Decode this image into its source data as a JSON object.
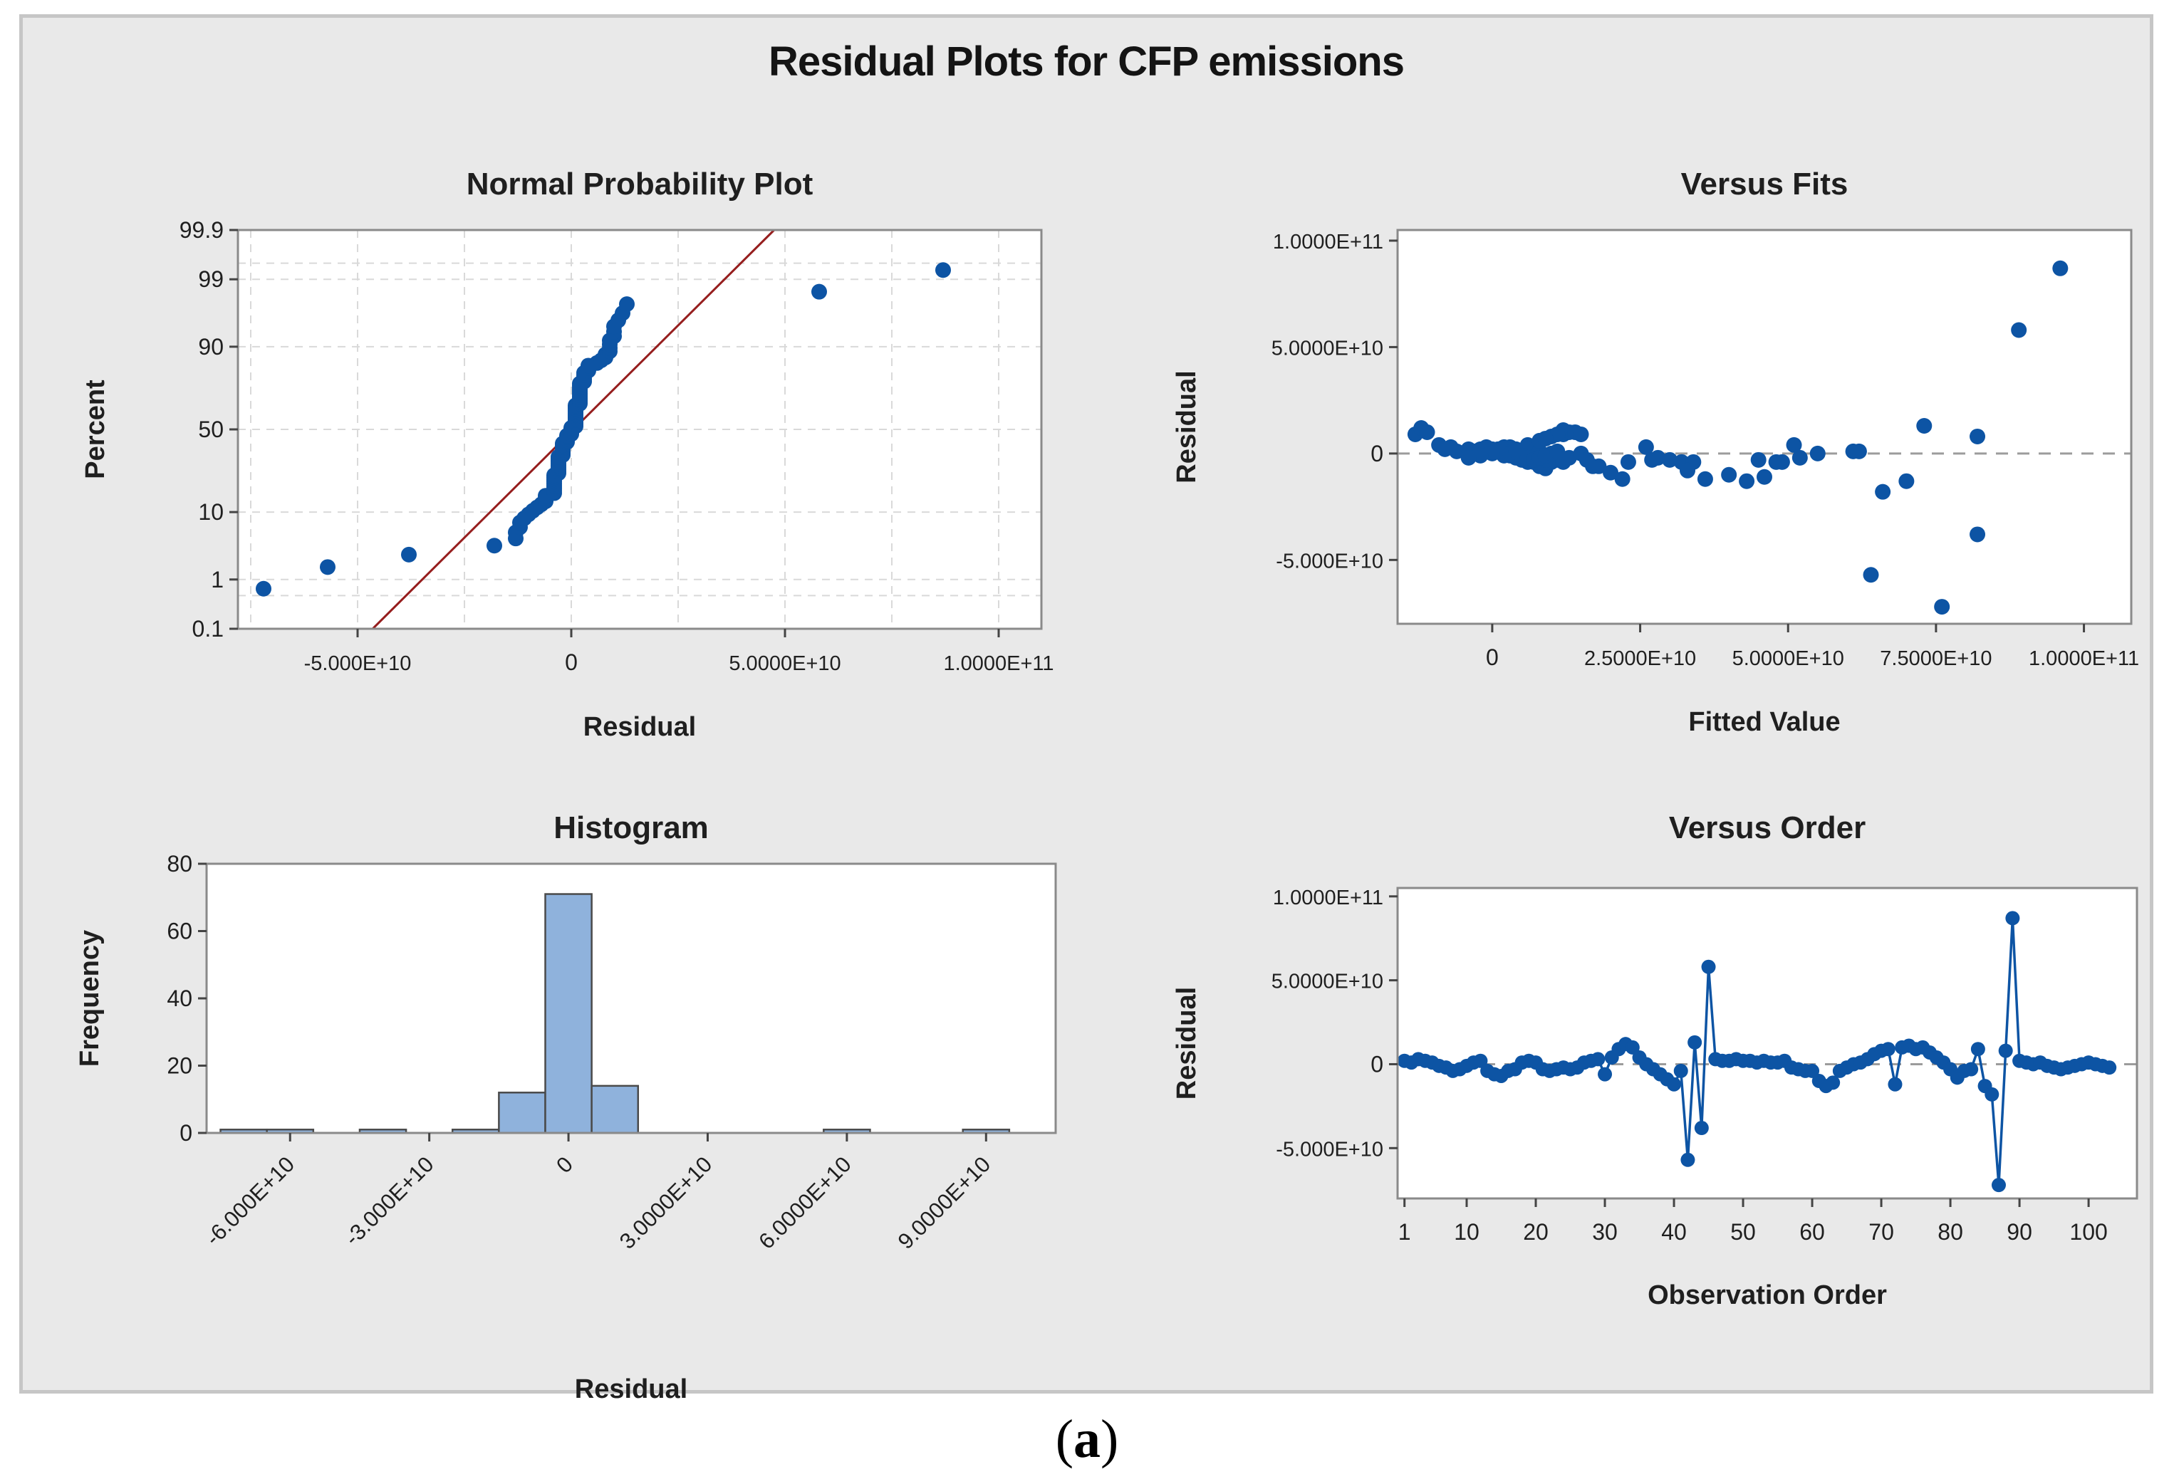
{
  "figure": {
    "title": "Residual Plots for CFP emissions",
    "caption": {
      "open": "(",
      "letter": "a",
      "close": ")"
    },
    "colors": {
      "background": "#e9e9e9",
      "figure_border": "#c6c6c6",
      "plot_background": "#ffffff",
      "plot_border": "#8a8a8a",
      "point_blue": "#0D54A4",
      "bar_fill": "#8FB2DC",
      "bar_edge": "#4a4a4a",
      "fit_line_red": "#961E1E",
      "zero_line_gray": "#9c9c9c",
      "grid_gray": "#d9d9d9",
      "tick_color": "#444444",
      "text_color": "#1f1f1f"
    }
  },
  "chart_data": [
    {
      "id": "normal_probability_plot",
      "type": "scatter",
      "title": "Normal Probability Plot",
      "xlabel": "Residual",
      "ylabel": "Percent",
      "x_scale": "linear",
      "y_scale": "probit",
      "xlim_e9": [
        -78,
        110
      ],
      "ylim_percent": [
        0.1,
        99.9
      ],
      "x_ticks": [
        {
          "v": -50,
          "label": "-5.000E+10"
        },
        {
          "v": 0,
          "label": "0"
        },
        {
          "v": 50,
          "label": "5.0000E+10"
        },
        {
          "v": 100,
          "label": "1.0000E+11"
        }
      ],
      "y_ticks": [
        {
          "v": 99.9,
          "label": "99.9"
        },
        {
          "v": 99,
          "label": "99"
        },
        {
          "v": 90,
          "label": "90"
        },
        {
          "v": 50,
          "label": "50"
        },
        {
          "v": 10,
          "label": "10"
        },
        {
          "v": 1,
          "label": "1"
        },
        {
          "v": 0.1,
          "label": "0.1"
        }
      ],
      "y_grid_percents": [
        99.5,
        99,
        90,
        50,
        10,
        1,
        0.5
      ],
      "x_grid_start_e9": -75,
      "x_grid_step_e9": 25,
      "fit_line": {
        "mean_e9": 0.5,
        "sd_e9": 15.2
      },
      "points_note": "points are the sorted versus_order residuals at percent = 100*(rank-0.3)/(n+0.4)"
    },
    {
      "id": "versus_fits",
      "type": "scatter",
      "title": "Versus Fits",
      "xlabel": "Fitted Value",
      "ylabel": "Residual",
      "xlim_e9": [
        -16,
        108
      ],
      "ylim_e9": [
        -80,
        105
      ],
      "zero_line": true,
      "x_ticks": [
        {
          "v": 0,
          "label": "0"
        },
        {
          "v": 25,
          "label": "2.5000E+10"
        },
        {
          "v": 50,
          "label": "5.0000E+10"
        },
        {
          "v": 75,
          "label": "7.5000E+10"
        },
        {
          "v": 100,
          "label": "1.0000E+11"
        }
      ],
      "y_ticks": [
        {
          "v": 100,
          "label": "1.0000E+11"
        },
        {
          "v": 50,
          "label": "5.0000E+10"
        },
        {
          "v": 0,
          "label": "0"
        },
        {
          "v": -50,
          "label": "-5.000E+10"
        }
      ],
      "fitted_e9": [
        -8,
        -6,
        -7,
        -4,
        -3,
        2,
        4,
        6,
        5,
        3,
        0,
        -2,
        7,
        8,
        9,
        10,
        6,
        1,
        -1,
        2,
        11,
        12,
        9,
        8,
        7,
        13,
        5,
        4,
        3,
        17,
        6,
        -13,
        -12,
        -11,
        -9,
        15,
        16,
        18,
        20,
        22,
        23,
        64,
        73,
        82,
        89,
        -1,
        0,
        1,
        2,
        3,
        4,
        5,
        6,
        7,
        8,
        2,
        28,
        30,
        32,
        34,
        40,
        43,
        46,
        49,
        52,
        55,
        62,
        26,
        8,
        10,
        12,
        36,
        13,
        12,
        11,
        14,
        9,
        51,
        61,
        45,
        33,
        48,
        27,
        15,
        70,
        66,
        76,
        82,
        96,
        1,
        2,
        3,
        4,
        5,
        6,
        7,
        8,
        9,
        10,
        11,
        0,
        -2,
        -4
      ]
    },
    {
      "id": "histogram",
      "type": "bar",
      "title": "Histogram",
      "xlabel": "Residual",
      "ylabel": "Frequency",
      "xlim_e9": [
        -78,
        105
      ],
      "ylim": [
        0,
        80
      ],
      "bin_width_e9": 10,
      "bin_centers_e9": [
        -70,
        -60,
        -40,
        -20,
        -10,
        0,
        10,
        60,
        90
      ],
      "frequencies": [
        1,
        1,
        1,
        1,
        12,
        71,
        14,
        1,
        1
      ],
      "x_tick_rotation": -45,
      "x_ticks": [
        {
          "v": -60,
          "label": "-6.000E+10"
        },
        {
          "v": -30,
          "label": "-3.000E+10"
        },
        {
          "v": 0,
          "label": "0"
        },
        {
          "v": 30,
          "label": "3.0000E+10"
        },
        {
          "v": 60,
          "label": "6.0000E+10"
        },
        {
          "v": 90,
          "label": "9.0000E+10"
        }
      ],
      "y_ticks": [
        {
          "v": 0,
          "label": "0"
        },
        {
          "v": 20,
          "label": "20"
        },
        {
          "v": 40,
          "label": "40"
        },
        {
          "v": 60,
          "label": "60"
        },
        {
          "v": 80,
          "label": "80"
        }
      ]
    },
    {
      "id": "versus_order",
      "type": "line",
      "title": "Versus Order",
      "xlabel": "Observation Order",
      "ylabel": "Residual",
      "xlim": [
        0,
        107
      ],
      "ylim_e9": [
        -80,
        105
      ],
      "zero_line": true,
      "x_ticks": [
        {
          "v": 1,
          "label": "1"
        },
        {
          "v": 10,
          "label": "10"
        },
        {
          "v": 20,
          "label": "20"
        },
        {
          "v": 30,
          "label": "30"
        },
        {
          "v": 40,
          "label": "40"
        },
        {
          "v": 50,
          "label": "50"
        },
        {
          "v": 60,
          "label": "60"
        },
        {
          "v": 70,
          "label": "70"
        },
        {
          "v": 80,
          "label": "80"
        },
        {
          "v": 90,
          "label": "90"
        },
        {
          "v": 100,
          "label": "100"
        }
      ],
      "y_ticks": [
        {
          "v": 100,
          "label": "1.0000E+11"
        },
        {
          "v": 50,
          "label": "5.0000E+10"
        },
        {
          "v": 0,
          "label": "0"
        },
        {
          "v": -50,
          "label": "-5.000E+10"
        }
      ],
      "residuals_e9": [
        2,
        1,
        3,
        2,
        1,
        -1,
        -2,
        -4,
        -3,
        -1,
        1,
        2,
        -4,
        -6,
        -7,
        -4,
        -3,
        1,
        2,
        1,
        -3,
        -4,
        -3,
        -2,
        -3,
        -2,
        1,
        2,
        3,
        -6,
        4,
        9,
        12,
        10,
        4,
        0,
        -3,
        -6,
        -9,
        -12,
        -4,
        -57,
        13,
        -38,
        58,
        3,
        2,
        2,
        3,
        2,
        2,
        1,
        2,
        1,
        1,
        2,
        -2,
        -3,
        -4,
        -4,
        -10,
        -13,
        -11,
        -4,
        -2,
        0,
        1,
        3,
        6,
        8,
        9,
        -12,
        10,
        11,
        9,
        10,
        7,
        4,
        1,
        -3,
        -8,
        -4,
        -3,
        9,
        -13,
        -18,
        -72,
        8,
        87,
        2,
        1,
        0,
        1,
        -1,
        -2,
        -3,
        -2,
        -1,
        0,
        1,
        0,
        -1,
        -2
      ]
    }
  ]
}
